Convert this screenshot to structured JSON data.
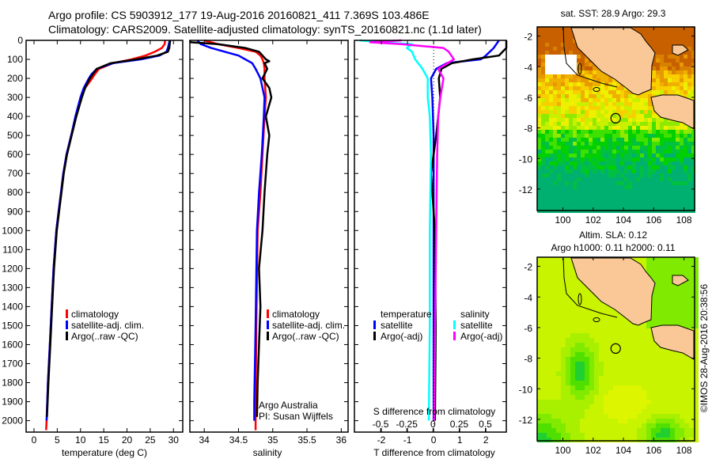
{
  "header": {
    "line1": "Argo profile: CS 5903912_177 19-Aug-2016 20160821_411 7.369S 103.486E",
    "line2": "Climatology: CARS2009. Satellite-adjusted climatology: synTS_20160821.nc (1.1d later)"
  },
  "credit": {
    "line1": "Argo Australia",
    "line2": "PI: Susan Wijffels",
    "stamp": "©IMOS 28-Aug-2016 20:38:56"
  },
  "colors": {
    "climatology": "#ff0000",
    "satellite": "#0000ff",
    "argo": "#000000",
    "sal_satellite": "#00ffff",
    "sal_argo": "#ff00ff"
  },
  "chart_data": [
    {
      "type": "line",
      "id": "temperature",
      "xlabel": "temperature (deg C)",
      "ylabel": "depth",
      "xlim": [
        -1.7,
        32
      ],
      "ylim": [
        2060,
        0
      ],
      "xticks": [
        0,
        5,
        10,
        15,
        20,
        25,
        30
      ],
      "yticks": [
        0,
        100,
        200,
        300,
        400,
        500,
        600,
        700,
        800,
        900,
        1000,
        1100,
        1200,
        1300,
        1400,
        1500,
        1600,
        1700,
        1800,
        1900,
        2000
      ],
      "legend": [
        "climatology",
        "satellite-adj. clim.",
        "Argo(..raw -QC)"
      ],
      "series": [
        {
          "name": "climatology",
          "color": "#ff0000",
          "depth": [
            0,
            20,
            40,
            60,
            80,
            100,
            120,
            150,
            180,
            200,
            250,
            300,
            400,
            500,
            600,
            700,
            800,
            900,
            1000,
            1200,
            1400,
            1600,
            1800,
            2000,
            2050
          ],
          "values": [
            28.2,
            28.1,
            27.5,
            26,
            24,
            21,
            17,
            14,
            13,
            12.5,
            11,
            10.2,
            9,
            8,
            7,
            6.3,
            5.8,
            5.3,
            4.8,
            4.2,
            3.8,
            3.4,
            3,
            2.7,
            2.6
          ]
        },
        {
          "name": "satellite-adj. clim.",
          "color": "#0000ff",
          "depth": [
            0,
            20,
            40,
            60,
            80,
            100,
            120,
            150,
            180,
            200,
            250,
            300,
            400,
            500,
            600,
            700,
            800,
            900,
            1000,
            1200,
            1400,
            1600,
            1800,
            2000
          ],
          "values": [
            29.2,
            29,
            28.8,
            28.5,
            27,
            23,
            17,
            13.5,
            12.3,
            11.8,
            10.7,
            10,
            8.9,
            8,
            7,
            6.3,
            5.8,
            5.3,
            4.8,
            4.2,
            3.8,
            3.4,
            3,
            2.7
          ]
        },
        {
          "name": "Argo(..raw -QC)",
          "color": "#000000",
          "depth": [
            0,
            20,
            40,
            60,
            80,
            100,
            120,
            150,
            180,
            200,
            250,
            300,
            400,
            500,
            600,
            700,
            800,
            900,
            1000,
            1200,
            1400,
            1600,
            1800,
            1980
          ],
          "values": [
            29.3,
            29.2,
            29.1,
            28.8,
            26.5,
            22,
            16.5,
            13.5,
            12.6,
            12,
            11,
            10.3,
            9.1,
            8.1,
            7.1,
            6.4,
            5.9,
            5.4,
            4.9,
            4.3,
            3.9,
            3.5,
            3.1,
            2.8
          ]
        }
      ]
    },
    {
      "type": "line",
      "id": "salinity",
      "xlabel": "salinity",
      "xlim": [
        33.79,
        36.1
      ],
      "ylim": [
        2060,
        0
      ],
      "xticks": [
        34,
        34.5,
        35,
        35.5,
        36
      ],
      "legend": [
        "climatology",
        "satellite-adj. clim.",
        "Argo(..raw -QC)"
      ],
      "series": [
        {
          "name": "climatology",
          "color": "#ff0000",
          "depth": [
            0,
            20,
            40,
            60,
            80,
            100,
            120,
            150,
            200,
            300,
            400,
            600,
            800,
            1000,
            1500,
            2000,
            2050
          ],
          "values": [
            34.0,
            34.2,
            34.5,
            34.75,
            34.82,
            34.85,
            34.87,
            34.88,
            34.88,
            34.9,
            34.88,
            34.85,
            34.82,
            34.78,
            34.76,
            34.75,
            34.75
          ]
        },
        {
          "name": "satellite-adj. clim.",
          "color": "#0000ff",
          "depth": [
            0,
            20,
            40,
            60,
            80,
            100,
            120,
            150,
            200,
            300,
            400,
            600,
            800,
            1000,
            1500,
            1900,
            2000
          ],
          "values": [
            33.9,
            33.95,
            34.1,
            34.3,
            34.5,
            34.6,
            34.7,
            34.75,
            34.82,
            34.88,
            34.87,
            34.84,
            34.8,
            34.77,
            34.75,
            34.73,
            34.73
          ]
        },
        {
          "name": "Argo(..raw -QC)",
          "color": "#000000",
          "depth": [
            0,
            10,
            20,
            40,
            60,
            80,
            100,
            110,
            120,
            150,
            200,
            250,
            300,
            400,
            500,
            600,
            700,
            800,
            1000,
            1200,
            1400,
            1600,
            1800,
            1980
          ],
          "values": [
            33.7,
            33.8,
            34.2,
            34.6,
            34.8,
            34.85,
            34.9,
            34.95,
            34.88,
            34.92,
            34.85,
            34.95,
            34.98,
            34.9,
            34.95,
            34.92,
            34.9,
            34.88,
            34.85,
            34.8,
            34.82,
            34.8,
            34.78,
            34.77
          ]
        }
      ]
    },
    {
      "type": "line",
      "id": "difference",
      "xlabel": "T difference from climatology",
      "x2label": "S difference from climatology",
      "xlim": [
        -3.03,
        2.78
      ],
      "x2lim": [
        -0.75,
        0.7
      ],
      "ylim": [
        2060,
        0
      ],
      "xticks": [
        -2,
        -1,
        0,
        1,
        2
      ],
      "x2ticks": [
        -0.5,
        -0.25,
        0,
        0.25,
        0.5
      ],
      "legend": {
        "temperature_title": "temperature",
        "salinity_title": "salinity",
        "satellite": "satellite",
        "argo": "Argo(-adj)"
      },
      "series": [
        {
          "name": "temperature satellite",
          "axis": "T",
          "color": "#0000ff",
          "depth": [
            0,
            40,
            80,
            100,
            120,
            150,
            200,
            300,
            500,
            1000,
            1500,
            2000
          ],
          "values": [
            2.5,
            2.3,
            2.0,
            1.8,
            0.5,
            0.1,
            -0.1,
            -0.05,
            0,
            0,
            0,
            0
          ]
        },
        {
          "name": "temperature Argo(-adj)",
          "axis": "T",
          "color": "#000000",
          "depth": [
            0,
            40,
            80,
            100,
            120,
            150,
            200,
            300,
            500,
            700,
            1000,
            1500,
            2000
          ],
          "values": [
            2.8,
            2.8,
            2.5,
            1.5,
            0.7,
            0.3,
            0.2,
            0.25,
            0.1,
            -0.1,
            0.05,
            0.08,
            0.05
          ]
        },
        {
          "name": "salinity satellite",
          "axis": "S",
          "color": "#00ffff",
          "depth": [
            0,
            10,
            20,
            40,
            60,
            100,
            150,
            200,
            300,
            400,
            600,
            1000,
            1500,
            2000
          ],
          "values": [
            -0.7,
            -0.5,
            -0.2,
            -0.25,
            -0.2,
            -0.17,
            -0.1,
            -0.05,
            -0.05,
            -0.03,
            -0.02,
            -0.03,
            -0.03,
            -0.04
          ]
        },
        {
          "name": "salinity Argo(-adj)",
          "axis": "S",
          "color": "#ff00ff",
          "depth": [
            0,
            10,
            20,
            40,
            60,
            100,
            150,
            200,
            300,
            400,
            600,
            1000,
            1500,
            2000
          ],
          "values": [
            -0.3,
            -0.6,
            -0.3,
            0.1,
            0.15,
            0.2,
            0.05,
            0.1,
            0.07,
            0.05,
            0.04,
            0.03,
            0.02,
            0.01
          ]
        }
      ]
    },
    {
      "type": "heatmap",
      "id": "sst-map",
      "title": "sat. SST: 28.9 Argo: 29.3",
      "xlim": [
        98.3,
        108.7
      ],
      "ylim": [
        -13.4,
        -1.4
      ],
      "xticks": [
        100,
        102,
        104,
        106,
        108
      ],
      "yticks": [
        -2,
        -4,
        -6,
        -8,
        -10,
        -12
      ],
      "marker": {
        "lon": 103.486,
        "lat": -7.369
      }
    },
    {
      "type": "heatmap",
      "id": "sla-map",
      "title": "Altim. SLA: 0.12",
      "subtitle": "Argo h1000: 0.11 h2000: 0.11",
      "xlim": [
        98.3,
        108.7
      ],
      "ylim": [
        -13.4,
        -1.4
      ],
      "xticks": [
        100,
        102,
        104,
        106,
        108
      ],
      "yticks": [
        -2,
        -4,
        -6,
        -8,
        -10,
        -12
      ],
      "marker": {
        "lon": 103.486,
        "lat": -7.369
      }
    }
  ]
}
